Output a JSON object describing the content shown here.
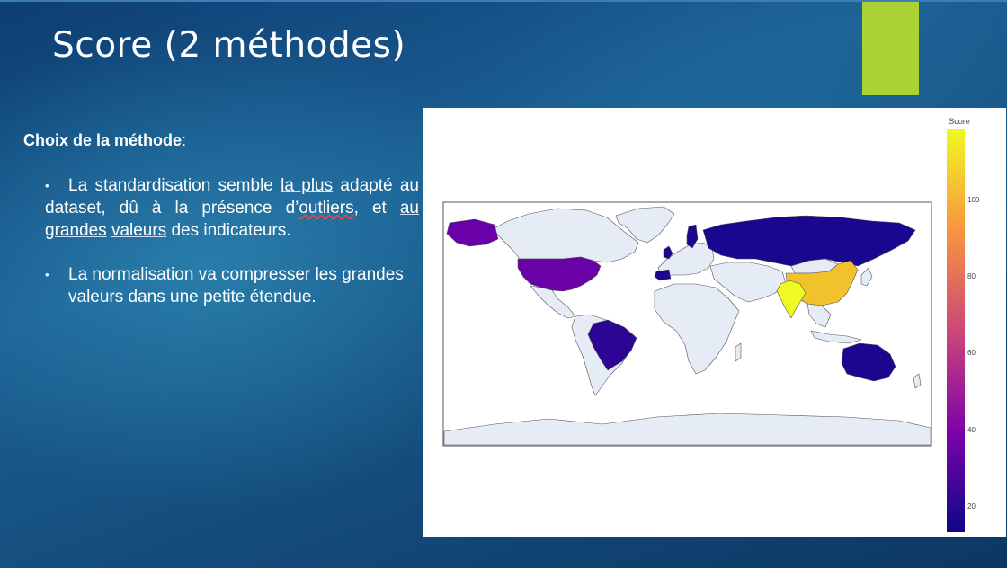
{
  "slide": {
    "title": "Score (2 méthodes)",
    "accent_color": "#aad234"
  },
  "content": {
    "heading_bold": "Choix de la méthode",
    "heading_colon": ":",
    "bullet_symbol": "•",
    "bullet1": {
      "p1": "La standardisation semble ",
      "u1": "la plus",
      "p2": " adapté au dataset, dû à la  présence d’",
      "u2": "outliers",
      "p3": ", et ",
      "u3": "au",
      "p4": " ",
      "u4": "grandes",
      "p5": " ",
      "u5": "valeurs",
      "p6": " des indicateurs."
    },
    "bullet2": "La normalisation va compresser les grandes valeurs dans une petite étendue."
  },
  "map": {
    "colorbar_title": "Score",
    "ticks": [
      "100",
      "80",
      "60",
      "40",
      "20"
    ],
    "land_color": "#e5ecf6",
    "colorscale": [
      "#0d0887",
      "#7e03a8",
      "#cc4778",
      "#f89540",
      "#f0f921"
    ],
    "countries": [
      {
        "name": "United States",
        "color": "#6a00a8"
      },
      {
        "name": "Alaska",
        "color": "#6a00a8"
      },
      {
        "name": "Brazil",
        "color": "#2c0594"
      },
      {
        "name": "Russia",
        "color": "#1a0790"
      },
      {
        "name": "China",
        "color": "#f2c22c"
      },
      {
        "name": "India",
        "color": "#f0f921"
      },
      {
        "name": "Australia",
        "color": "#1d068f"
      },
      {
        "name": "Spain",
        "color": "#1a0790"
      },
      {
        "name": "United Kingdom",
        "color": "#1a0790"
      },
      {
        "name": "Sweden",
        "color": "#1a0790"
      }
    ]
  }
}
